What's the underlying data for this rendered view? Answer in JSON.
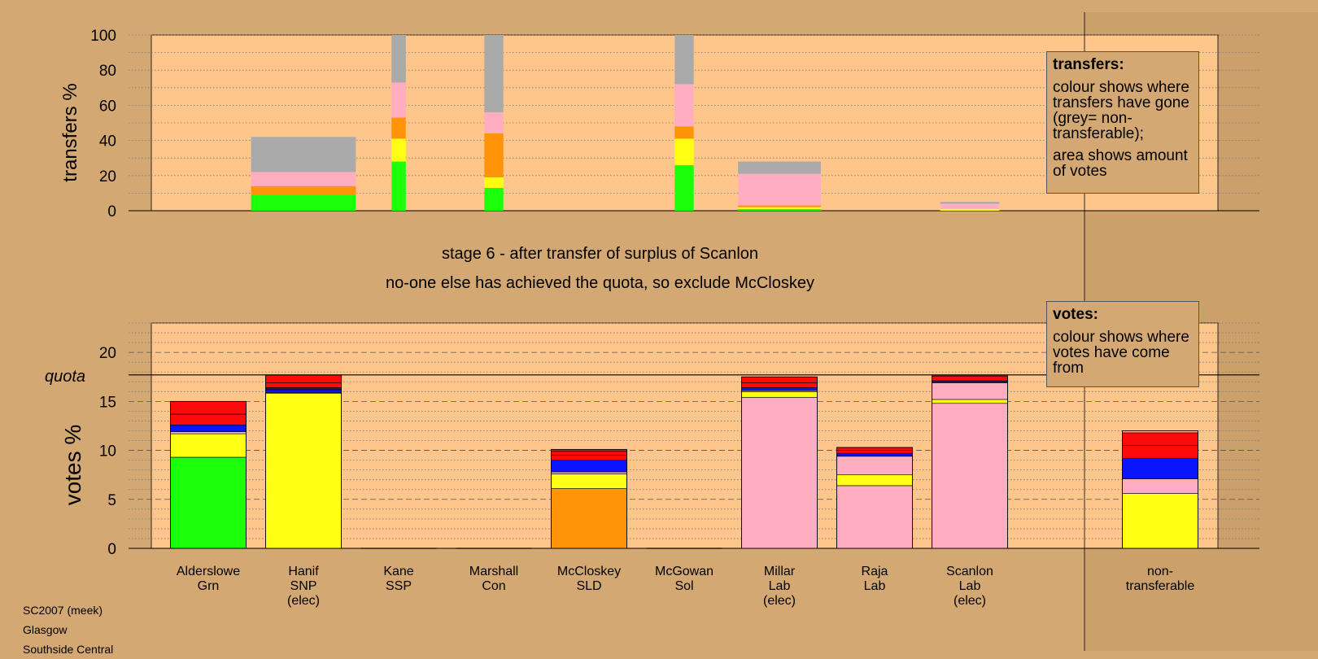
{
  "stage_title": "stage 6 - after transfer of surplus of Scanlon",
  "stage_note": "no-one else has achieved the quota, so exclude McCloskey",
  "footer": [
    "SC2007 (meek)",
    "Glasgow",
    "Southside Central"
  ],
  "legend_transfers": {
    "title": "transfers:",
    "lines_1": "colour shows where transfers have gone (grey= non-transferable);",
    "lines_2": "area shows amount of votes"
  },
  "legend_votes": {
    "title": "votes:",
    "lines_1": "colour shows where votes have come from"
  },
  "colors": {
    "green": "#1cff0a",
    "yellow": "#ffff14",
    "orange": "#ff9408",
    "pink": "#ffaec2",
    "blue": "#0a14ff",
    "red": "#ff0a0a",
    "grey": "#aaaaaa",
    "navy": "#1a1a7a",
    "plot_bg": "#ffc68c",
    "page_bg": "#d4a872"
  },
  "chart_data": [
    {
      "type": "bar",
      "title": "",
      "ylabel": "transfers %",
      "ylim": [
        0,
        100
      ],
      "yticks": [
        0,
        20,
        40,
        60,
        80,
        100
      ],
      "grid": "dotted",
      "note": "bar width shows amount of transferring votes",
      "bars": [
        {
          "category": "Hanif SNP (elec)",
          "width_share": 1.1,
          "segments": [
            [
              "green",
              9
            ],
            [
              "orange",
              5
            ],
            [
              "pink",
              8
            ],
            [
              "grey",
              20
            ]
          ]
        },
        {
          "category": "Kane SSP",
          "width_share": 0.15,
          "segments": [
            [
              "green",
              28
            ],
            [
              "yellow",
              13
            ],
            [
              "orange",
              12
            ],
            [
              "pink",
              20
            ],
            [
              "grey",
              27
            ]
          ]
        },
        {
          "category": "Marshall Con",
          "width_share": 0.2,
          "segments": [
            [
              "green",
              13
            ],
            [
              "yellow",
              6
            ],
            [
              "orange",
              25
            ],
            [
              "pink",
              12
            ],
            [
              "grey",
              44
            ]
          ]
        },
        {
          "category": "McGowan Sol",
          "width_share": 0.2,
          "segments": [
            [
              "green",
              26
            ],
            [
              "yellow",
              15
            ],
            [
              "orange",
              7
            ],
            [
              "pink",
              24
            ],
            [
              "grey",
              28
            ]
          ]
        },
        {
          "category": "Millar Lab (elec)",
          "width_share": 0.87,
          "segments": [
            [
              "green",
              1
            ],
            [
              "yellow",
              1
            ],
            [
              "orange",
              1
            ],
            [
              "pink",
              18
            ],
            [
              "grey",
              7
            ]
          ]
        },
        {
          "category": "Scanlon Lab (elec)",
          "width_share": 0.62,
          "segments": [
            [
              "yellow",
              1
            ],
            [
              "pink",
              3
            ],
            [
              "grey",
              1
            ]
          ]
        }
      ]
    },
    {
      "type": "bar",
      "title": "",
      "ylabel": "votes %",
      "ylim": [
        0,
        23
      ],
      "yticks": [
        0,
        5,
        10,
        15,
        20
      ],
      "quota": 17.7,
      "quota_label": "quota",
      "grid": "dashed",
      "bars": [
        {
          "label": [
            "Alderslowe",
            "Grn"
          ],
          "segments": [
            [
              "green",
              9.3
            ],
            [
              "yellow",
              2.4
            ],
            [
              "pink",
              0.2
            ],
            [
              "blue",
              0.7
            ],
            [
              "red",
              1.1
            ],
            [
              "red",
              1.3
            ]
          ]
        },
        {
          "label": [
            "Hanif",
            "SNP",
            "(elec)"
          ],
          "segments": [
            [
              "yellow",
              15.8
            ],
            [
              "pink",
              0.1
            ],
            [
              "blue",
              0.3
            ],
            [
              "navy",
              0.2
            ],
            [
              "red",
              0.5
            ],
            [
              "red",
              0.8
            ]
          ]
        },
        {
          "label": [
            "Kane",
            "SSP"
          ],
          "segments": []
        },
        {
          "label": [
            "Marshall",
            "Con"
          ],
          "segments": []
        },
        {
          "label": [
            "McCloskey",
            "SLD"
          ],
          "segments": [
            [
              "orange",
              6.1
            ],
            [
              "yellow",
              1.5
            ],
            [
              "pink",
              0.2
            ],
            [
              "blue",
              1.2
            ],
            [
              "red",
              0.5
            ],
            [
              "red",
              0.4
            ],
            [
              "red",
              0.2
            ]
          ]
        },
        {
          "label": [
            "McGowan",
            "Sol"
          ],
          "segments": []
        },
        {
          "label": [
            "Millar",
            "Lab",
            "(elec)"
          ],
          "segments": [
            [
              "pink",
              15.4
            ],
            [
              "yellow",
              0.6
            ],
            [
              "pink",
              0.1
            ],
            [
              "blue",
              0.3
            ],
            [
              "red",
              0.5
            ],
            [
              "red",
              0.6
            ]
          ]
        },
        {
          "label": [
            "Raja",
            "Lab"
          ],
          "segments": [
            [
              "pink",
              6.4
            ],
            [
              "yellow",
              1.1
            ],
            [
              "pink",
              1.9
            ],
            [
              "blue",
              0.3
            ],
            [
              "red",
              0.3
            ],
            [
              "red",
              0.3
            ]
          ]
        },
        {
          "label": [
            "Scanlon",
            "Lab",
            "(elec)"
          ],
          "segments": [
            [
              "pink",
              14.8
            ],
            [
              "yellow",
              0.4
            ],
            [
              "pink",
              1.7
            ],
            [
              "navy",
              0.2
            ],
            [
              "red",
              0.5
            ]
          ]
        },
        {
          "label": [
            "non-",
            "transferable"
          ],
          "segments": [
            [
              "yellow",
              5.6
            ],
            [
              "pink",
              1.5
            ],
            [
              "blue",
              2.1
            ],
            [
              "red",
              1.3
            ],
            [
              "red",
              1.3
            ],
            [
              "pink",
              0.2
            ]
          ]
        }
      ]
    }
  ]
}
